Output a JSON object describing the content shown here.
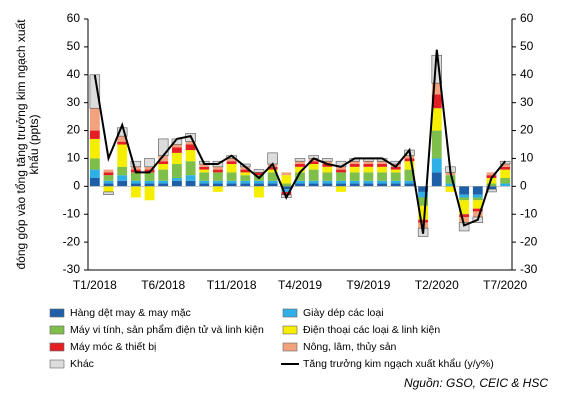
{
  "chart_data": {
    "type": "bar",
    "ylabel": [
      "đóng góp vào tổng tăng trưởng kim ngạch xuất",
      "khẩu (ppts)"
    ],
    "categories": [
      "T1/2018",
      null,
      null,
      null,
      null,
      "T6/2018",
      null,
      null,
      null,
      null,
      "T11/2018",
      null,
      null,
      null,
      null,
      "T4/2019",
      null,
      null,
      null,
      null,
      "T9/2019",
      null,
      null,
      null,
      null,
      "T2/2020",
      null,
      null,
      null,
      null,
      "T7/2020"
    ],
    "ylim": [
      -30,
      60
    ],
    "yticks": [
      -30,
      -20,
      -10,
      0,
      10,
      20,
      30,
      40,
      50,
      60
    ],
    "y2lim": [
      -30,
      60
    ],
    "y2ticks": [
      -30,
      -20,
      -10,
      0,
      10,
      20,
      30,
      40,
      50,
      60
    ],
    "series": [
      {
        "name": "Hàng dệt may & may mặc",
        "color": "#1f5fa8",
        "values": [
          3,
          1,
          2,
          1,
          1,
          1,
          2,
          2,
          1,
          1,
          1,
          1,
          1,
          1,
          -1,
          1,
          1,
          1,
          1,
          1,
          1,
          1,
          1,
          1,
          -2,
          5,
          0,
          -3,
          -3,
          -1,
          0
        ]
      },
      {
        "name": "Giày dép các loại",
        "color": "#2eb0e6",
        "values": [
          3,
          1,
          2,
          1,
          1,
          1,
          1,
          2,
          1,
          1,
          1,
          1,
          1,
          1,
          -1,
          1,
          1,
          1,
          1,
          1,
          1,
          1,
          1,
          1,
          -2,
          5,
          1,
          -1,
          -1,
          0,
          1
        ]
      },
      {
        "name": "Máy vi tính, sản phẩm điện tử và linh kiện",
        "color": "#7dbf4a",
        "values": [
          4,
          2,
          3,
          3,
          3,
          4,
          5,
          5,
          3,
          3,
          3,
          2,
          2,
          3,
          1,
          3,
          4,
          3,
          3,
          3,
          3,
          3,
          3,
          4,
          -3,
          10,
          3,
          -1,
          -1,
          1,
          2
        ]
      },
      {
        "name": "Điện thoại các loại & linh kiện",
        "color": "#f5ee00",
        "values": [
          7,
          -2,
          8,
          -4,
          -5,
          2,
          4,
          4,
          1,
          -2,
          3,
          1,
          -4,
          1,
          3,
          2,
          2,
          2,
          -2,
          2,
          2,
          2,
          1,
          3,
          -5,
          8,
          -2,
          -5,
          -3,
          2,
          3
        ]
      },
      {
        "name": "Máy móc & thiết bị",
        "color": "#e31e24",
        "values": [
          3,
          1,
          1,
          1,
          1,
          1,
          2,
          2,
          1,
          1,
          1,
          1,
          1,
          1,
          -1,
          1,
          1,
          1,
          1,
          1,
          1,
          1,
          1,
          1,
          -1,
          5,
          0,
          -1,
          -1,
          1,
          1
        ]
      },
      {
        "name": "Nông, lâm, thủy sản",
        "color": "#f2a27c",
        "values": [
          8,
          1,
          2,
          1,
          1,
          2,
          1,
          1,
          1,
          1,
          1,
          1,
          0,
          1,
          1,
          1,
          1,
          1,
          1,
          1,
          1,
          1,
          1,
          1,
          -2,
          4,
          1,
          -2,
          -2,
          1,
          1
        ]
      },
      {
        "name": "Khác",
        "color": "#dcdcdc",
        "values": [
          12,
          -1,
          3,
          2,
          3,
          6,
          2,
          3,
          1,
          2,
          1,
          1,
          1,
          4,
          -1,
          1,
          1,
          1,
          2,
          1,
          1,
          1,
          1,
          2,
          -3,
          10,
          2,
          -3,
          -2,
          -1,
          1
        ]
      },
      {
        "name": "Tăng trưởng kim ngạch xuất khẩu (y/y%)",
        "type": "line",
        "color": "#000000",
        "values": [
          40,
          10,
          22,
          5,
          5,
          11,
          17,
          18,
          8,
          8,
          11,
          7,
          3,
          8,
          -4,
          5,
          10,
          8,
          7,
          10,
          10,
          10,
          7,
          13,
          -17,
          49,
          5,
          -14,
          -12,
          3,
          9
        ]
      }
    ],
    "source": "Nguồn: GSO, CEIC & HSC"
  }
}
